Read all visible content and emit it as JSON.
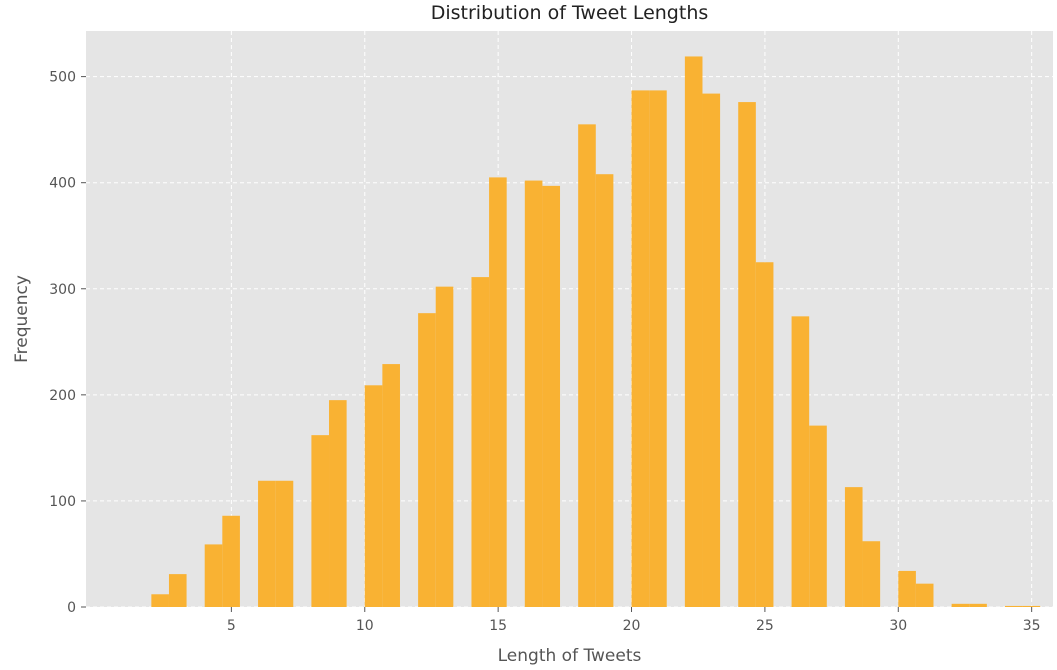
{
  "chart_data": {
    "type": "bar",
    "title": "Distribution of Tweet Lengths",
    "xlabel": "Length of Tweets",
    "ylabel": "Frequency",
    "xlim": [
      -0.45,
      35.8
    ],
    "ylim": [
      0,
      543
    ],
    "xticks": [
      5,
      10,
      15,
      20,
      25,
      30,
      35
    ],
    "yticks": [
      0,
      100,
      200,
      300,
      400,
      500
    ],
    "grid": true,
    "bar_color": "#f9b233",
    "background_color": "#e5e5e5",
    "grid_color": "#ffffff",
    "bins": [
      {
        "x0": 2.0,
        "x1": 2.66,
        "value": 12
      },
      {
        "x0": 2.66,
        "x1": 3.32,
        "value": 31
      },
      {
        "x0": 4.0,
        "x1": 4.66,
        "value": 59
      },
      {
        "x0": 4.66,
        "x1": 5.32,
        "value": 86
      },
      {
        "x0": 6.0,
        "x1": 6.66,
        "value": 119
      },
      {
        "x0": 6.66,
        "x1": 7.32,
        "value": 119
      },
      {
        "x0": 8.0,
        "x1": 8.66,
        "value": 162
      },
      {
        "x0": 8.66,
        "x1": 9.32,
        "value": 195
      },
      {
        "x0": 10.0,
        "x1": 10.66,
        "value": 209
      },
      {
        "x0": 10.66,
        "x1": 11.32,
        "value": 229
      },
      {
        "x0": 12.0,
        "x1": 12.66,
        "value": 277
      },
      {
        "x0": 12.66,
        "x1": 13.32,
        "value": 302
      },
      {
        "x0": 14.0,
        "x1": 14.66,
        "value": 311
      },
      {
        "x0": 14.66,
        "x1": 15.32,
        "value": 405
      },
      {
        "x0": 16.0,
        "x1": 16.66,
        "value": 402
      },
      {
        "x0": 16.66,
        "x1": 17.32,
        "value": 397
      },
      {
        "x0": 18.0,
        "x1": 18.66,
        "value": 455
      },
      {
        "x0": 18.66,
        "x1": 19.32,
        "value": 408
      },
      {
        "x0": 20.0,
        "x1": 20.66,
        "value": 487
      },
      {
        "x0": 20.66,
        "x1": 21.32,
        "value": 487
      },
      {
        "x0": 22.0,
        "x1": 22.66,
        "value": 519
      },
      {
        "x0": 22.66,
        "x1": 23.32,
        "value": 484
      },
      {
        "x0": 24.0,
        "x1": 24.66,
        "value": 476
      },
      {
        "x0": 24.66,
        "x1": 25.32,
        "value": 325
      },
      {
        "x0": 26.0,
        "x1": 26.66,
        "value": 274
      },
      {
        "x0": 26.66,
        "x1": 27.32,
        "value": 171
      },
      {
        "x0": 28.0,
        "x1": 28.66,
        "value": 113
      },
      {
        "x0": 28.66,
        "x1": 29.32,
        "value": 62
      },
      {
        "x0": 30.0,
        "x1": 30.66,
        "value": 34
      },
      {
        "x0": 30.66,
        "x1": 31.32,
        "value": 22
      },
      {
        "x0": 32.0,
        "x1": 32.66,
        "value": 3
      },
      {
        "x0": 32.66,
        "x1": 33.32,
        "value": 3
      },
      {
        "x0": 34.0,
        "x1": 34.66,
        "value": 1
      },
      {
        "x0": 34.66,
        "x1": 35.32,
        "value": 1
      }
    ]
  }
}
